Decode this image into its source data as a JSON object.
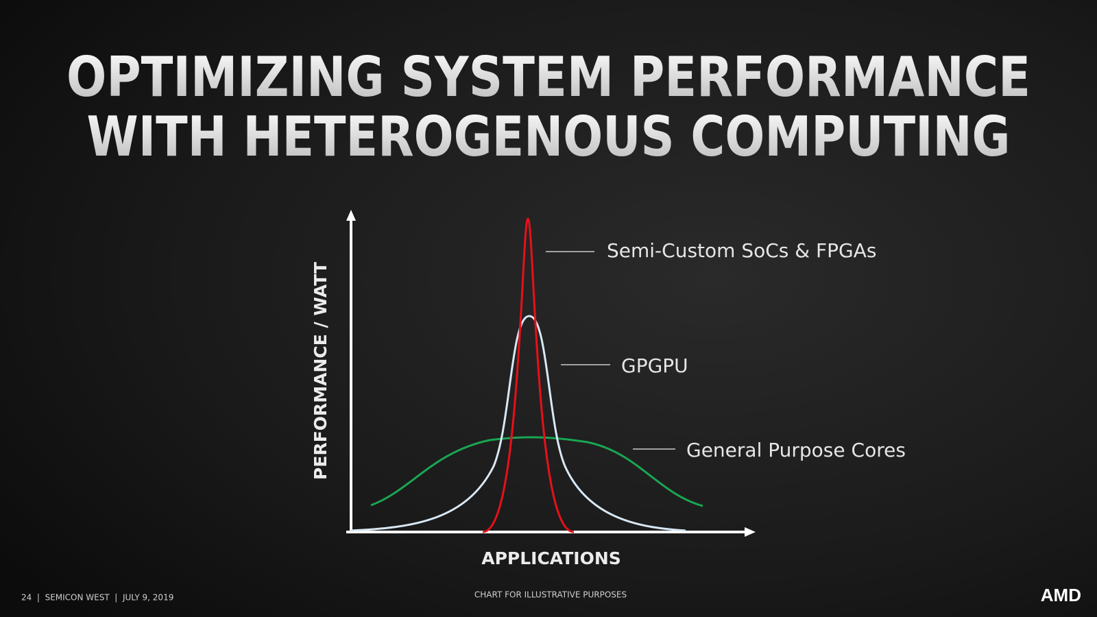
{
  "slide": {
    "title_lines": [
      "OPTIMIZING SYSTEM PERFORMANCE",
      "WITH HETEROGENOUS COMPUTING"
    ],
    "y_axis_label": "PERFORMANCE / WATT",
    "x_axis_label": "APPLICATIONS",
    "curves": [
      {
        "label": "Semi-Custom SoCs & FPGAs"
      },
      {
        "label": "GPGPU"
      },
      {
        "label": "General Purpose Cores"
      }
    ],
    "note": "CHART FOR ILLUSTRATIVE PURPOSES"
  },
  "footer": {
    "info": "24  |  SEMICON WEST  |  JULY 9, 2019",
    "logo": "AMD"
  }
}
